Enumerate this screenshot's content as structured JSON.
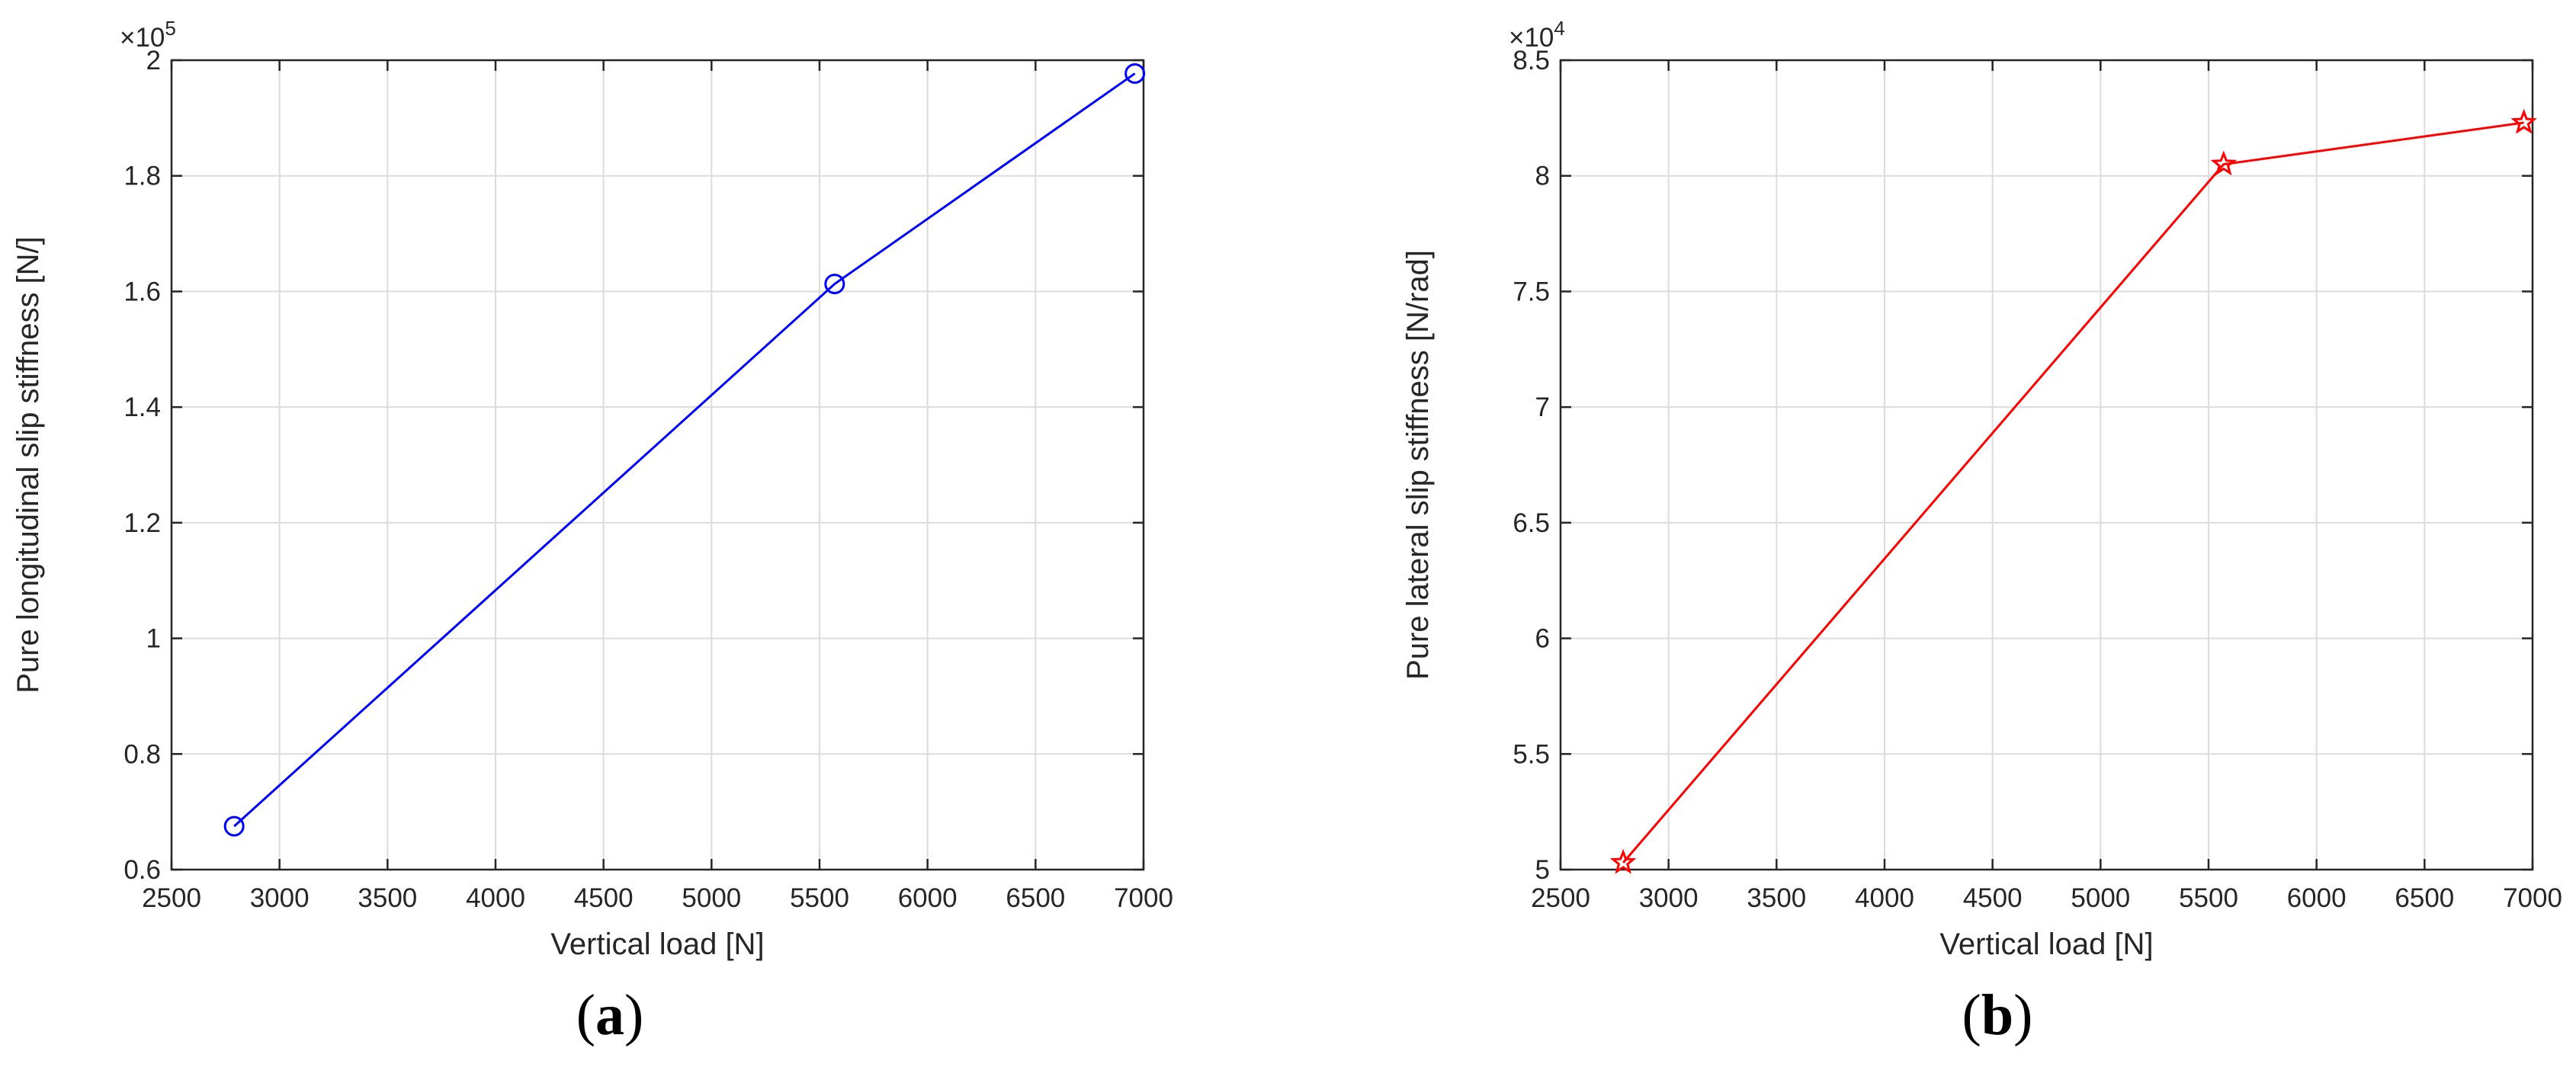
{
  "chart_data": [
    {
      "type": "line",
      "panel_label": "a",
      "xlabel": "Vertical load  [N]",
      "ylabel": "Pure longitudinal slip stiffness  [N/]",
      "y_multiplier": {
        "base": "×10",
        "exponent": "5"
      },
      "xlim": [
        2500,
        7000
      ],
      "ylim": [
        0.6,
        2.0
      ],
      "xticks": [
        2500,
        3000,
        3500,
        4000,
        4500,
        5000,
        5500,
        6000,
        6500,
        7000
      ],
      "yticks": [
        0.6,
        0.8,
        1.0,
        1.2,
        1.4,
        1.6,
        1.8,
        2.0
      ],
      "ytick_labels": [
        "0.6",
        "0.8",
        "1",
        "1.2",
        "1.4",
        "1.6",
        "1.8",
        "2"
      ],
      "grid": true,
      "series": [
        {
          "x": [
            2790,
            5570,
            6960
          ],
          "y": [
            0.675,
            1.613,
            1.977
          ],
          "color": "#0000ff",
          "marker": "circle"
        }
      ]
    },
    {
      "type": "line",
      "panel_label": "b",
      "xlabel": "Vertical load  [N]",
      "ylabel": "Pure lateral slip stiffness  [N/rad]",
      "y_multiplier": {
        "base": "×10",
        "exponent": "4"
      },
      "xlim": [
        2500,
        7000
      ],
      "ylim": [
        5.0,
        8.5
      ],
      "xticks": [
        2500,
        3000,
        3500,
        4000,
        4500,
        5000,
        5500,
        6000,
        6500,
        7000
      ],
      "yticks": [
        5.0,
        5.5,
        6.0,
        6.5,
        7.0,
        7.5,
        8.0,
        8.5
      ],
      "ytick_labels": [
        "5",
        "5.5",
        "6",
        "6.5",
        "7",
        "7.5",
        "8",
        "8.5"
      ],
      "grid": true,
      "series": [
        {
          "x": [
            2790,
            5570,
            6960
          ],
          "y": [
            5.03,
            8.05,
            8.23
          ],
          "color": "#ff0000",
          "marker": "star"
        }
      ]
    }
  ]
}
